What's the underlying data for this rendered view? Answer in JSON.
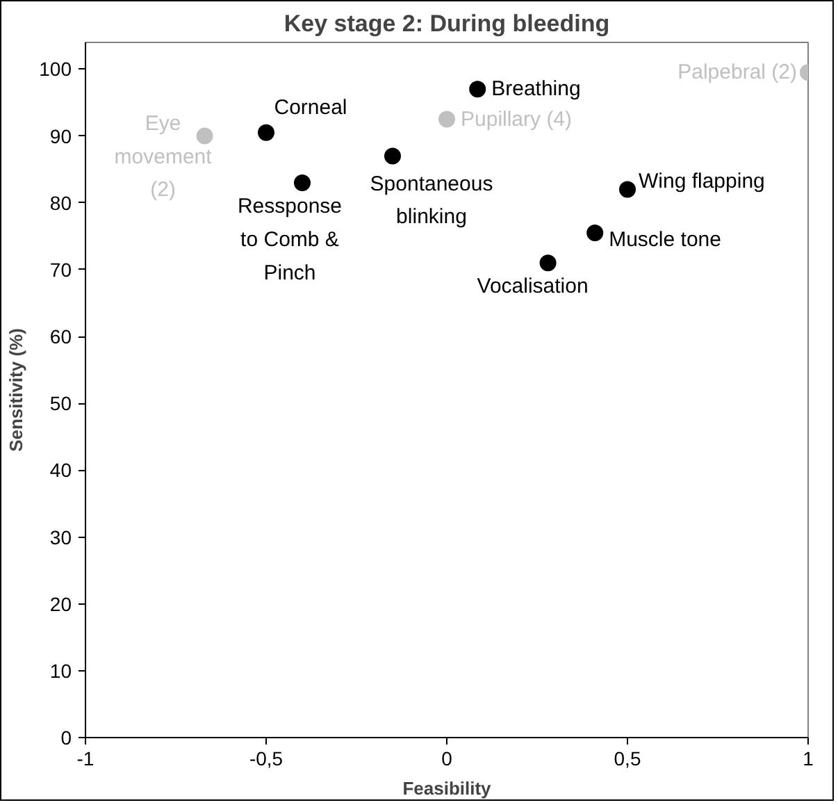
{
  "chart_data": {
    "type": "scatter",
    "title": "Key stage 2: During bleeding",
    "xlabel": "Feasibility",
    "ylabel": "Sensitivity (%)",
    "xlim": [
      -1,
      1
    ],
    "ylim": [
      0,
      104
    ],
    "xticks": [
      -1,
      {
        "value": -0.5,
        "label": "-0,5"
      },
      0,
      {
        "value": 0.5,
        "label": "0,5"
      },
      1
    ],
    "yticks": [
      0,
      10,
      20,
      30,
      40,
      50,
      60,
      70,
      80,
      90,
      100
    ],
    "marker": "circle",
    "series": [
      {
        "color": "#c0c0c0",
        "x": [
          -0.67,
          0,
          1
        ],
        "values": [
          90,
          92.5,
          99.5
        ]
      },
      {
        "color": "#000000",
        "x": [
          -0.5,
          -0.4,
          -0.15,
          0.085,
          0.5,
          0.41,
          0.28
        ],
        "values": [
          90.5,
          83,
          87,
          97,
          82,
          75.5,
          71
        ]
      }
    ],
    "annotations": [
      {
        "text": "Eye\nmovement\n(2)",
        "x": -0.67,
        "y": 90
      },
      {
        "text": "Pupillary (4)",
        "x": 0,
        "y": 92.5
      },
      {
        "text": "Palpebral (2)",
        "x": 1,
        "y": 99.5
      },
      {
        "text": "Corneal",
        "x": -0.5,
        "y": 90.5
      },
      {
        "text": "Ressponse\nto Comb &\nPinch",
        "x": -0.4,
        "y": 83
      },
      {
        "text": "Spontaneous\nblinking",
        "x": -0.15,
        "y": 87
      },
      {
        "text": "Breathing",
        "x": 0.085,
        "y": 97
      },
      {
        "text": "Wing flapping",
        "x": 0.5,
        "y": 82
      },
      {
        "text": "Muscle tone",
        "x": 0.41,
        "y": 75.5
      },
      {
        "text": "Vocalisation",
        "x": 0.28,
        "y": 71
      }
    ]
  }
}
